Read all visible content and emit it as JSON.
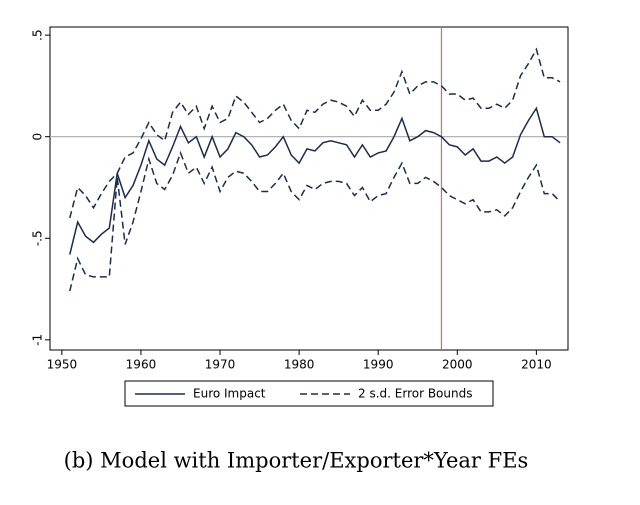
{
  "chart_data": {
    "type": "line",
    "caption": "(b) Model with Importer/Exporter*Year FEs",
    "x": [
      1951,
      1952,
      1953,
      1954,
      1955,
      1956,
      1957,
      1958,
      1959,
      1960,
      1961,
      1962,
      1963,
      1964,
      1965,
      1966,
      1967,
      1968,
      1969,
      1970,
      1971,
      1972,
      1973,
      1974,
      1975,
      1976,
      1977,
      1978,
      1979,
      1980,
      1981,
      1982,
      1983,
      1984,
      1985,
      1986,
      1987,
      1988,
      1989,
      1990,
      1991,
      1992,
      1993,
      1994,
      1995,
      1996,
      1997,
      1998,
      1999,
      2000,
      2001,
      2002,
      2003,
      2004,
      2005,
      2006,
      2007,
      2008,
      2009,
      2010,
      2011,
      2012,
      2013
    ],
    "series": [
      {
        "name": "Euro Impact",
        "color": "#1c2c4c",
        "dash": false,
        "values": [
          -0.58,
          -0.42,
          -0.49,
          -0.52,
          -0.48,
          -0.45,
          -0.18,
          -0.3,
          -0.24,
          -0.14,
          -0.02,
          -0.11,
          -0.14,
          -0.05,
          0.05,
          -0.03,
          0.0,
          -0.1,
          0.0,
          -0.1,
          -0.06,
          0.02,
          0.0,
          -0.04,
          -0.1,
          -0.09,
          -0.05,
          0.0,
          -0.09,
          -0.13,
          -0.06,
          -0.07,
          -0.03,
          -0.02,
          -0.03,
          -0.04,
          -0.1,
          -0.04,
          -0.1,
          -0.08,
          -0.07,
          0.0,
          0.09,
          -0.02,
          0.0,
          0.03,
          0.02,
          0.0,
          -0.04,
          -0.05,
          -0.09,
          -0.06,
          -0.12,
          -0.12,
          -0.1,
          -0.13,
          -0.1,
          0.01,
          0.08,
          0.14,
          0.0,
          0.0,
          -0.03
        ]
      },
      {
        "name": "2 s.d. Error Bounds",
        "color": "#1c2c4c",
        "dash": true,
        "upper": [
          -0.4,
          -0.25,
          -0.29,
          -0.35,
          -0.28,
          -0.22,
          -0.18,
          -0.1,
          -0.08,
          -0.01,
          0.07,
          0.01,
          -0.02,
          0.12,
          0.17,
          0.11,
          0.15,
          0.04,
          0.15,
          0.07,
          0.09,
          0.2,
          0.17,
          0.12,
          0.07,
          0.09,
          0.13,
          0.16,
          0.08,
          0.04,
          0.13,
          0.12,
          0.16,
          0.18,
          0.17,
          0.15,
          0.1,
          0.18,
          0.13,
          0.13,
          0.16,
          0.22,
          0.32,
          0.21,
          0.25,
          0.27,
          0.27,
          0.25,
          0.21,
          0.21,
          0.18,
          0.19,
          0.14,
          0.14,
          0.16,
          0.14,
          0.18,
          0.3,
          0.36,
          0.43,
          0.29,
          0.29,
          0.27
        ],
        "lower": [
          -0.76,
          -0.6,
          -0.68,
          -0.69,
          -0.69,
          -0.69,
          -0.2,
          -0.53,
          -0.42,
          -0.27,
          -0.11,
          -0.23,
          -0.26,
          -0.19,
          -0.08,
          -0.18,
          -0.15,
          -0.23,
          -0.15,
          -0.27,
          -0.2,
          -0.17,
          -0.18,
          -0.22,
          -0.27,
          -0.27,
          -0.23,
          -0.18,
          -0.27,
          -0.31,
          -0.24,
          -0.26,
          -0.23,
          -0.22,
          -0.22,
          -0.23,
          -0.29,
          -0.25,
          -0.32,
          -0.29,
          -0.28,
          -0.2,
          -0.13,
          -0.23,
          -0.23,
          -0.2,
          -0.22,
          -0.25,
          -0.29,
          -0.31,
          -0.33,
          -0.31,
          -0.37,
          -0.37,
          -0.36,
          -0.39,
          -0.35,
          -0.27,
          -0.2,
          -0.14,
          -0.28,
          -0.28,
          -0.32
        ]
      }
    ],
    "xlim": [
      1948.5,
      2014
    ],
    "xticks": [
      1950,
      1960,
      1970,
      1980,
      1990,
      2000,
      2010
    ],
    "ylim": [
      -1.05,
      0.54
    ],
    "yticks": [
      {
        "value": 0.5,
        "label": ".5"
      },
      0,
      {
        "value": -0.5,
        "label": "-.5"
      },
      {
        "value": -1,
        "label": "-1"
      }
    ],
    "hline": 0,
    "hline_color": "#aaaaaa",
    "vline": 1998,
    "vline_color": "#d46a6a",
    "grid": false
  }
}
